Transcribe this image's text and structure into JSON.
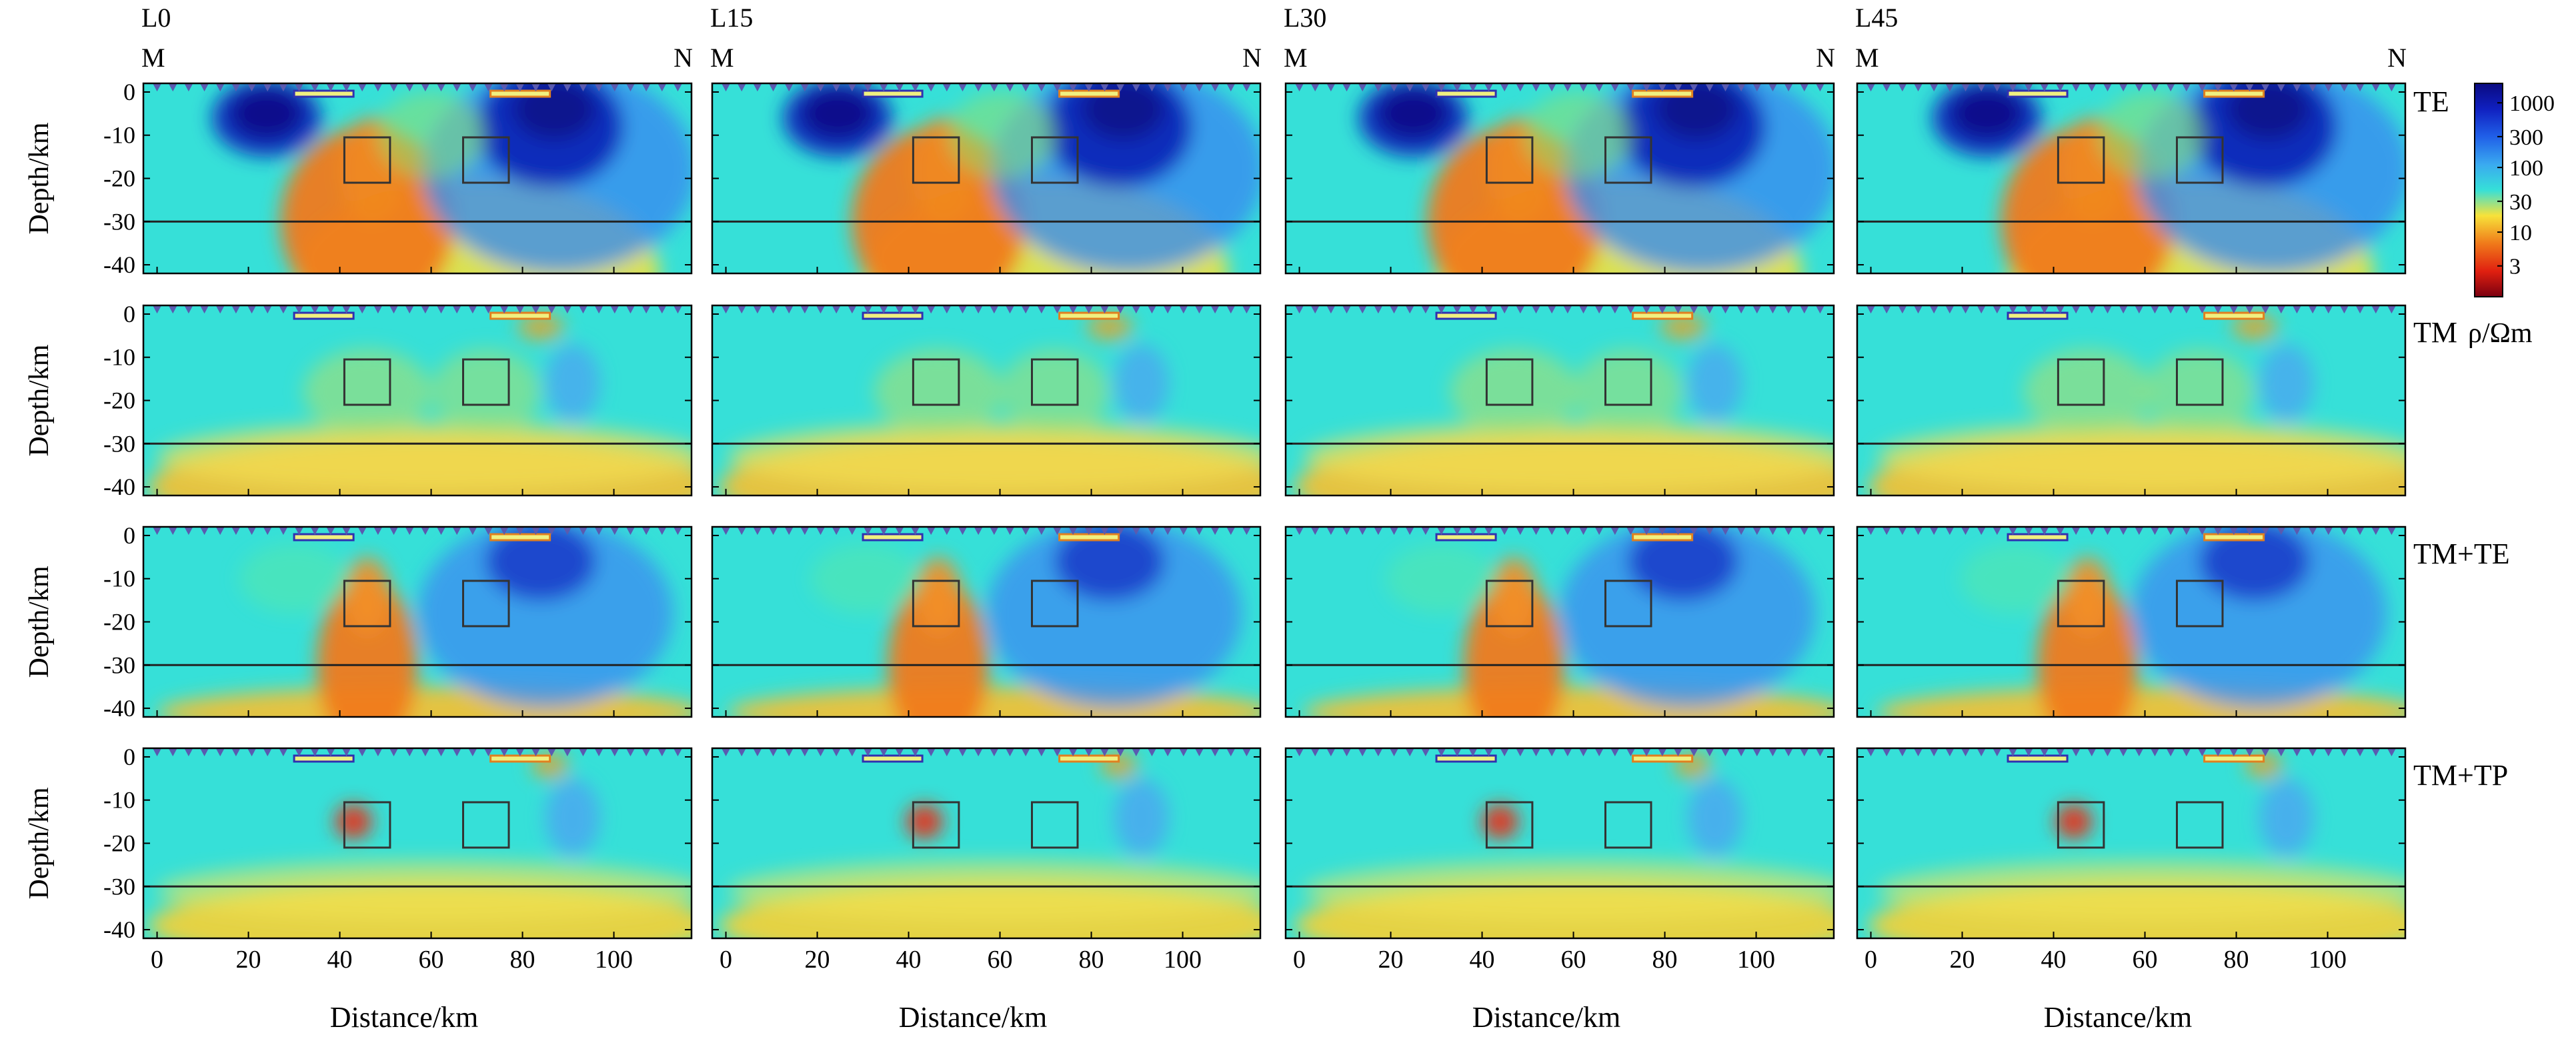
{
  "chart_data": {
    "type": "heatmap",
    "columns": [
      {
        "title": "L0",
        "left_end": "M",
        "right_end": "N"
      },
      {
        "title": "L15",
        "left_end": "M",
        "right_end": "N"
      },
      {
        "title": "L30",
        "left_end": "M",
        "right_end": "N"
      },
      {
        "title": "L45",
        "left_end": "M",
        "right_end": "N"
      }
    ],
    "rows": [
      {
        "label": "TE"
      },
      {
        "label": "TM"
      },
      {
        "label": "TM+TE"
      },
      {
        "label": "TM+TP"
      }
    ],
    "xlabel": "Distance/km",
    "ylabel": "Depth/km",
    "xlim": [
      -3,
      117
    ],
    "ylim": [
      -42,
      2
    ],
    "xticks": [
      0,
      20,
      40,
      60,
      80,
      100
    ],
    "xtick_labels": [
      "0",
      "20",
      "40",
      "60",
      "80",
      "100"
    ],
    "yticks": [
      0,
      -10,
      -20,
      -30,
      -40
    ],
    "ytick_labels": [
      "0",
      "-10",
      "-20",
      "-30",
      "-40"
    ],
    "moho_depth_km": -30,
    "station_count": 34,
    "boxes_km": [
      {
        "x0": 41,
        "x1": 51,
        "y0": -10.5,
        "y1": -21
      },
      {
        "x0": 67,
        "x1": 77,
        "y0": -10.5,
        "y1": -21
      }
    ],
    "surface_bars_km": [
      {
        "x0": 30,
        "x1": 43,
        "color": "#3030b0"
      },
      {
        "x0": 73,
        "x1": 86,
        "color": "#e08020"
      }
    ],
    "colorbar": {
      "label": "ρ/Ωm",
      "ticks": [
        1000,
        300,
        100,
        30,
        10,
        3
      ],
      "tick_labels": [
        "1000",
        "300",
        "100",
        "30",
        "10",
        "3"
      ],
      "scale": "log",
      "range": [
        1,
        2000
      ]
    },
    "colors": {
      "background_model": "#36e0d8",
      "conductor": "#e8301a",
      "resistor": "#0a1aa0",
      "moho_line": "#222222",
      "box_line": "#333333",
      "station_marker": "#5a5ab0"
    }
  }
}
